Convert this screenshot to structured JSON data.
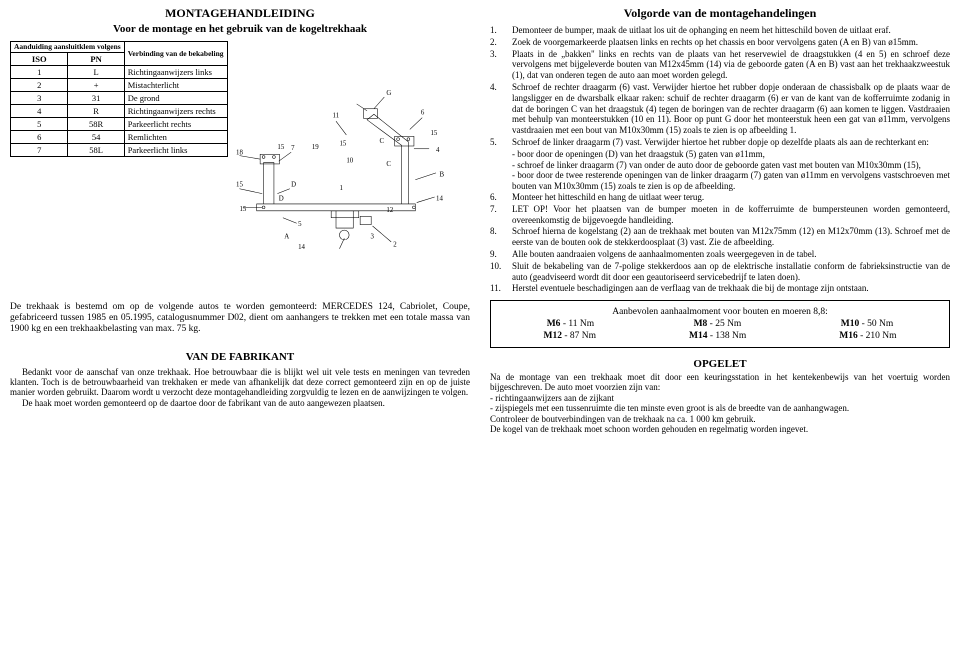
{
  "left": {
    "title": "MONTAGEHANDLEIDING",
    "subtitle": "Voor de montage en het gebruik van de kogeltrekhaak",
    "table_header_iso_group": "Aanduiding aansluitklem volgens",
    "table_header_desc": "Verbinding van de bekabeling",
    "iso_col": "ISO",
    "pn_col": "PN",
    "rows": [
      {
        "iso": "1",
        "pn": "L",
        "desc": "Richtingaanwijzers links"
      },
      {
        "iso": "2",
        "pn": "+",
        "desc": "Mistachterlicht"
      },
      {
        "iso": "3",
        "pn": "31",
        "desc": "De grond"
      },
      {
        "iso": "4",
        "pn": "R",
        "desc": "Richtingaanwijzers rechts"
      },
      {
        "iso": "5",
        "pn": "58R",
        "desc": "Parkeerlicht rechts"
      },
      {
        "iso": "6",
        "pn": "54",
        "desc": "Remlichten"
      },
      {
        "iso": "7",
        "pn": "58L",
        "desc": "Parkeerlicht links"
      }
    ],
    "diagram_labels": {
      "l18": "18",
      "l15a": "15",
      "l15b": "15",
      "l15c": "15",
      "l15d": "15",
      "l7": "7",
      "lDa": "D",
      "lDb": "D",
      "l5": "5",
      "lA": "A",
      "l14": "14",
      "l19": "19",
      "l11": "11",
      "l10": "10",
      "l1": "1",
      "lCa": "C",
      "lCb": "C",
      "lG": "G",
      "l6": "6",
      "l15e": "15",
      "l4": "4",
      "lB": "B",
      "l12": "12",
      "l14b": "14",
      "l2": "2",
      "l3": "3"
    },
    "blurb": "De trekhaak is bestemd om op de volgende autos te worden gemonteerd: MERCEDES 124, Cabriolet, Coupe, gefabriceerd tussen 1985 en 05.1995, catalogusnummer D02, dient om aanhangers te trekken met een totale massa van 1900 kg en een trekhaakbelasting van max. 75 kg.",
    "fab_head": "VAN DE FABRIKANT",
    "fab_body1": "Bedankt voor de aanschaf van onze trekhaak. Hoe betrouwbaar die is blijkt wel uit vele tests en meningen van tevreden klanten. Toch is de betrouwbaarheid van trekhaken er mede van afhankelijk dat deze correct gemonteerd zijn en op de juiste manier worden gebruikt. Daarom wordt u verzocht deze montagehandleiding zorgvuldig te lezen en de aanwijzingen te volgen.",
    "fab_body2": "De haak moet worden gemonteerd op de daartoe door de fabrikant van de auto aangewezen plaatsen."
  },
  "right": {
    "title": "Volgorde van de montagehandelingen",
    "steps": [
      {
        "n": "1.",
        "t": "Demonteer de bumper, maak de uitlaat los uit de ophanging en neem het hitteschild boven de uitlaat eraf."
      },
      {
        "n": "2.",
        "t": "Zoek de voorgemarkeerde plaatsen links en rechts op het chassis en boor vervolgens gaten (A en B) van ø15mm."
      },
      {
        "n": "3.",
        "t": "Plaats in de „bakken\" links en rechts van de plaats van het reservewiel de draagstukken (4 en 5) en schroef deze vervolgens met bijgeleverde bouten van M12x45mm (14) via de geboorde gaten (A en B) vast aan het trekhaakzweestuk (1), dat van onderen tegen de auto aan moet worden gelegd."
      },
      {
        "n": "4.",
        "t": "Schroef de rechter draagarm (6) vast. Verwijder hiertoe het rubber dopje onderaan de chassisbalk op de plaats waar de langsligger en de dwarsbalk elkaar raken: schuif de rechter draagarm (6) er van de kant van de kofferruimte zodanig in dat de boringen C van het draagstuk (4) tegen de boringen van de rechter draagarm (6) aan komen te liggen. Vastdraaien met behulp van monteerstukken (10 en 11). Boor op punt G door het monteerstuk heen een gat van ø11mm, vervolgens vastdraaien met een bout van M10x30mm (15) zoals te zien is op afbeelding 1."
      },
      {
        "n": "5.",
        "t": "Schroef de linker draagarm (7) vast. Verwijder hiertoe het rubber dopje op dezelfde plaats als aan de rechterkant en:"
      },
      {
        "n": "",
        "sub": [
          "boor door de openingen (D) van het draagstuk (5) gaten van ø11mm,",
          "schroef de linker draagarm (7) van onder de auto door de geboorde gaten vast met bouten van M10x30mm (15),",
          "boor door de twee resterende openingen van de linker draagarm (7) gaten van ø11mm en vervolgens vastschroeven met bouten van M10x30mm (15) zoals te zien is op de afbeelding."
        ]
      },
      {
        "n": "6.",
        "t": "Monteer het hitteschild en hang de uitlaat weer terug."
      },
      {
        "n": "7.",
        "t": "LET OP! Voor het plaatsen van de bumper moeten in de kofferruimte de bumpersteunen worden gemonteerd, overeenkomstig de bijgevoegde handleiding."
      },
      {
        "n": "8.",
        "t": "Schroef hierna de kogelstang (2) aan de trekhaak met bouten van M12x75mm (12) en M12x70mm (13). Schroef met de eerste van de bouten ook de stekkerdoosplaat (3) vast. Zie de afbeelding."
      },
      {
        "n": "9.",
        "t": "Alle bouten aandraaien volgens de aanhaalmomenten zoals weergegeven in de tabel."
      },
      {
        "n": "10.",
        "t": "Sluit de bekabeling van de 7-polige stekkerdoos aan op de elektrische installatie conform de fabrieksinstructie van de auto (geadviseerd wordt dit door een geautoriseerd servicebedrijf te laten doen)."
      },
      {
        "n": "11.",
        "t": "Herstel eventuele beschadigingen aan de verflaag van de trekhaak die bij de montage zijn ontstaan."
      }
    ],
    "torque_title": "Aanbevolen aanhaalmoment voor bouten en moeren 8,8:",
    "torques": [
      {
        "k": "M6",
        "v": "11 Nm"
      },
      {
        "k": "M8",
        "v": "25 Nm"
      },
      {
        "k": "M10",
        "v": "50 Nm"
      },
      {
        "k": "M12",
        "v": "87 Nm"
      },
      {
        "k": "M14",
        "v": "138 Nm"
      },
      {
        "k": "M16",
        "v": "210 Nm"
      }
    ],
    "opg_head": "OPGELET",
    "opg1": "Na de montage van een trekhaak moet dit door een keuringsstation in het kentekenbewijs van het voertuig worden bijgeschreven. De auto moet voorzien zijn van:",
    "opg_dash1": "- richtingaanwijzers aan de zijkant",
    "opg_dash2": "- zijspiegels met een tussenruimte die ten minste even groot is als de breedte van de aanhangwagen.",
    "opg2": "Controleer de boutverbindingen van de trekhaak na ca. 1 000 km gebruik.",
    "opg3": "De kogel van de trekhaak moet schoon worden gehouden en regelmatig worden ingevet."
  }
}
